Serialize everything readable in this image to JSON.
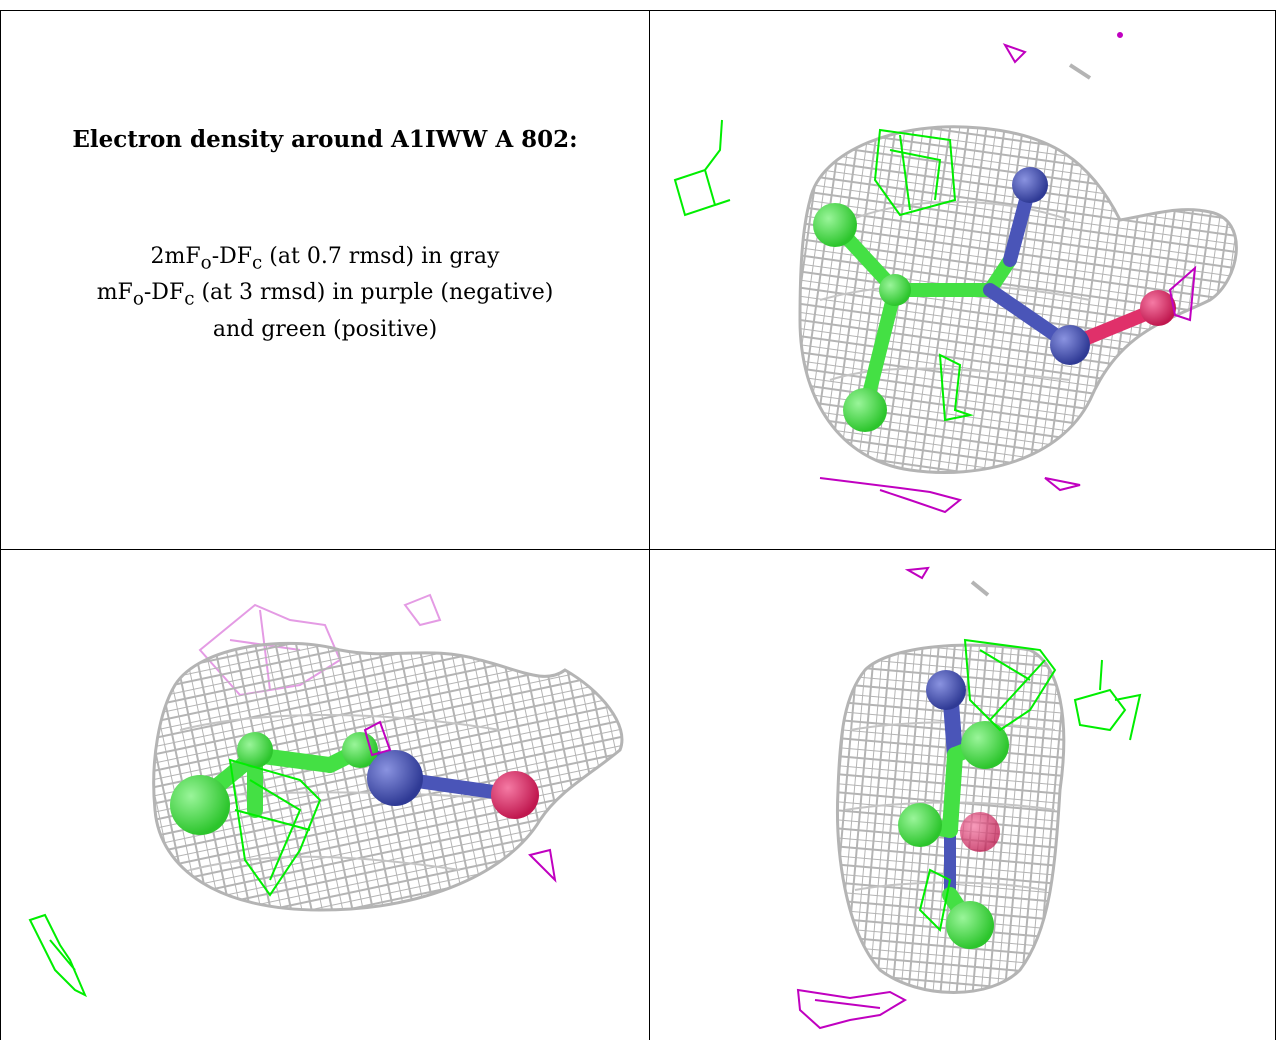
{
  "caption": {
    "title": "Electron density around A1IWW A 802:",
    "legend": [
      {
        "prefix": "2mF",
        "sub1": "o",
        "mid": "-DF",
        "sub2": "c",
        "suffix": " (at 0.7 rmsd) in gray"
      },
      {
        "prefix": "mF",
        "sub1": "o",
        "mid": "-DF",
        "sub2": "c",
        "suffix": " (at 3 rmsd) in purple (negative)"
      },
      {
        "text": "and green (positive)"
      }
    ]
  },
  "colors": {
    "mesh_2fofc": "#b4b4b4",
    "mesh_positive": "#00ee00",
    "mesh_negative": "#c000c0",
    "mesh_negative_light": "#e49be4",
    "atom_carbon": "#44e044",
    "atom_nitrogen": "#4a55b8",
    "atom_oxygen": "#e0306a"
  },
  "panels": [
    {
      "id": "view-1",
      "icon": "density-map-view-1"
    },
    {
      "id": "view-2",
      "icon": "density-map-view-2"
    },
    {
      "id": "view-3",
      "icon": "density-map-view-3"
    }
  ]
}
